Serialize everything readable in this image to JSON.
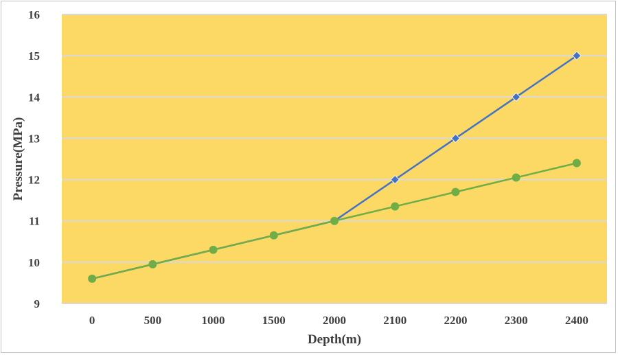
{
  "chart_data": {
    "type": "line",
    "title": "",
    "xlabel": "Depth(m)",
    "ylabel": "Pressure(MPa)",
    "categories": [
      "0",
      "500",
      "1000",
      "1500",
      "2000",
      "2100",
      "2200",
      "2300",
      "2400"
    ],
    "ylim": [
      9,
      16
    ],
    "yticks": [
      "9",
      "10",
      "11",
      "12",
      "13",
      "14",
      "15",
      "16"
    ],
    "grid": true,
    "legend": "none",
    "plot_background": "#FCD965",
    "series": [
      {
        "color": "#4472C4",
        "marker": "diamond",
        "values": [
          9.6,
          9.95,
          10.3,
          10.65,
          11.0,
          12.0,
          13.0,
          14.0,
          15.0
        ]
      },
      {
        "color": "#70AD47",
        "marker": "circle",
        "values": [
          9.6,
          9.95,
          10.3,
          10.65,
          11.0,
          11.35,
          11.7,
          12.05,
          12.4
        ]
      }
    ]
  }
}
